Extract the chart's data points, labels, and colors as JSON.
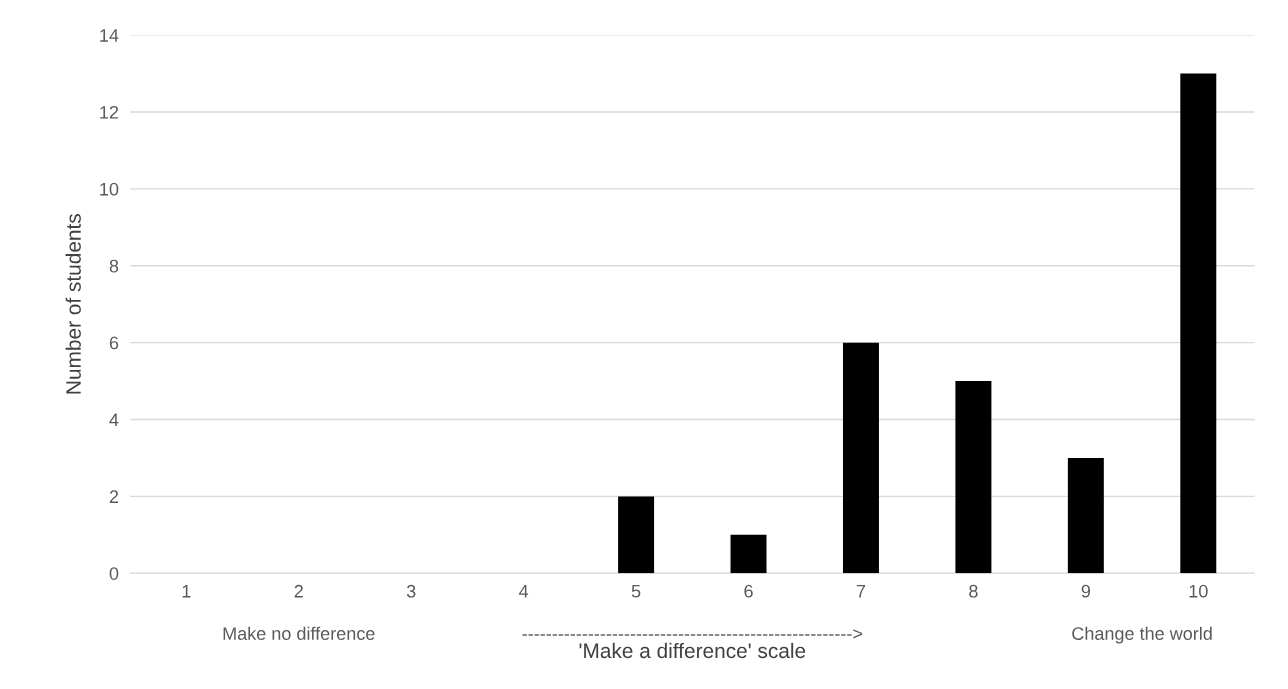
{
  "chart_data": {
    "type": "bar",
    "xlabel": "'Make a difference' scale",
    "ylabel": "Number of students",
    "categories": [
      "1",
      "2",
      "3",
      "4",
      "5",
      "6",
      "7",
      "8",
      "9",
      "10"
    ],
    "values": [
      0,
      0,
      0,
      0,
      2,
      1,
      6,
      5,
      3,
      13
    ],
    "color": "#000000",
    "ylim": [
      0,
      14
    ],
    "yticks": [
      0,
      2,
      4,
      6,
      8,
      10,
      12,
      14
    ],
    "grid": "y",
    "annotations": [
      "Make no difference",
      "------------------------------------------------------->",
      "Change the world"
    ]
  }
}
